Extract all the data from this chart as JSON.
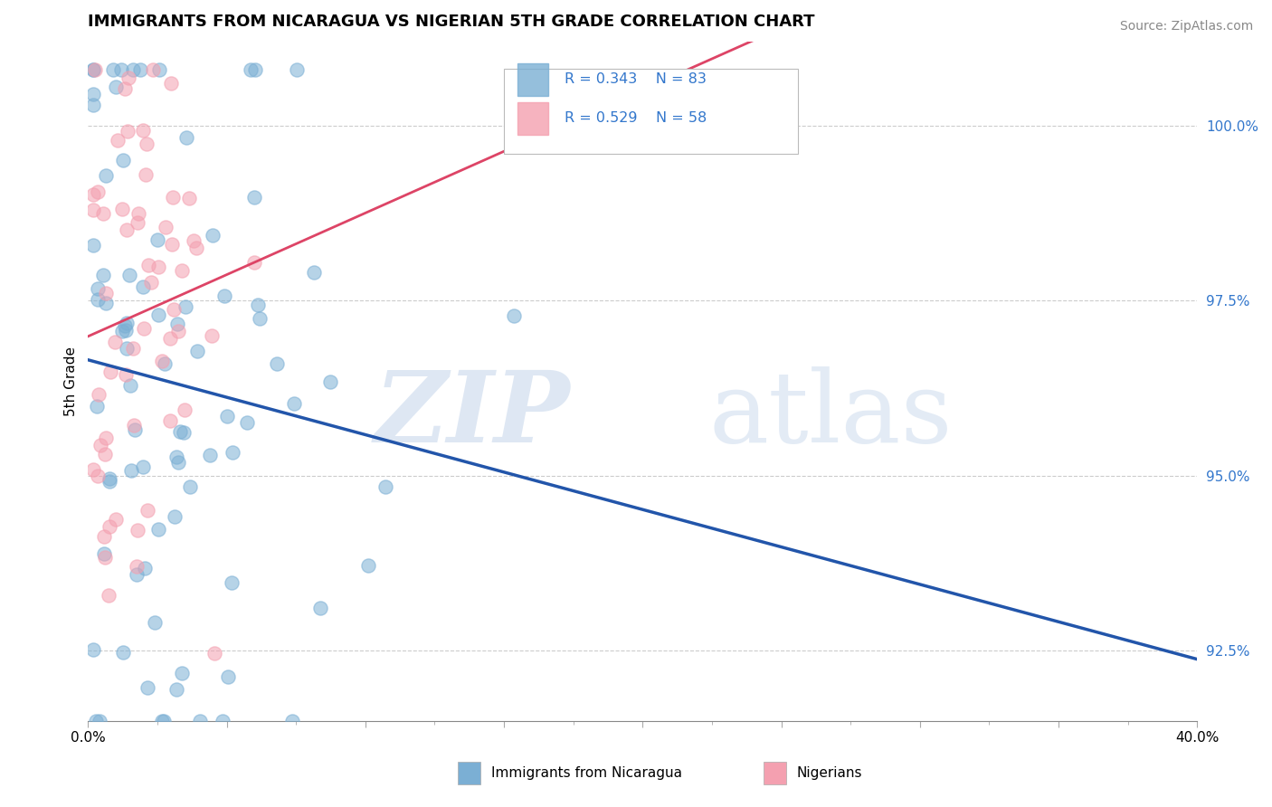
{
  "title": "IMMIGRANTS FROM NICARAGUA VS NIGERIAN 5TH GRADE CORRELATION CHART",
  "source": "Source: ZipAtlas.com",
  "ylabel": "5th Grade",
  "ytick_values": [
    92.5,
    95.0,
    97.5,
    100.0
  ],
  "xmin": 0.0,
  "xmax": 40.0,
  "ymin": 91.5,
  "ymax": 101.2,
  "r_nicaragua": 0.343,
  "n_nicaragua": 83,
  "r_nigerian": 0.529,
  "n_nigerian": 58,
  "legend_labels": [
    "Immigrants from Nicaragua",
    "Nigerians"
  ],
  "color_nicaragua": "#7BAFD4",
  "color_nigerian": "#F4A0B0",
  "line_color_nicaragua": "#2255AA",
  "line_color_nigerian": "#DD4466",
  "nicaragua_seed": 10,
  "nigerian_seed": 20
}
